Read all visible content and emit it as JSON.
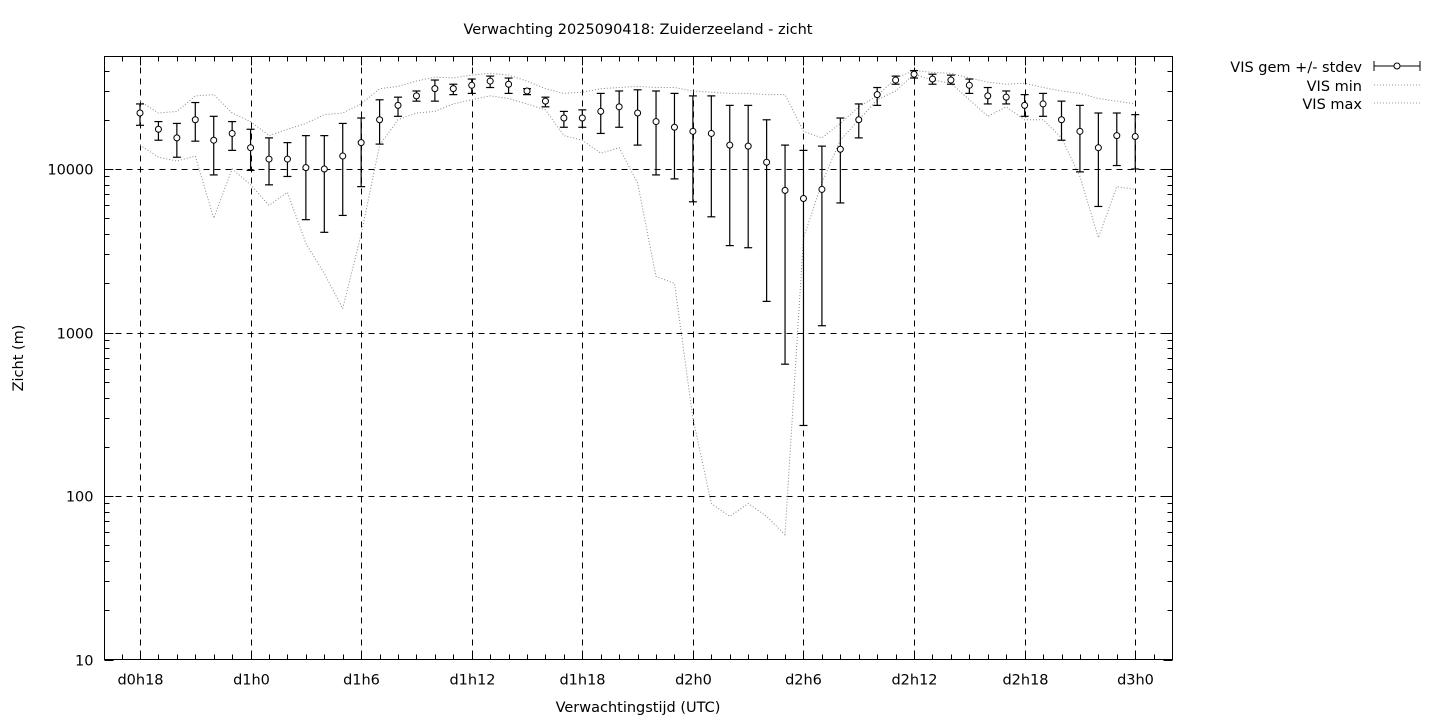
{
  "chart_data": {
    "type": "scatter",
    "title": "Verwachting 2025090418: Zuiderzeeland - zicht",
    "xlabel": "Verwachtingstijd (UTC)",
    "ylabel": "Zicht (m)",
    "y_scale": "log",
    "ylim": [
      10,
      50000
    ],
    "yticks": [
      10,
      100,
      1000,
      10000
    ],
    "ytick_labels": [
      "10",
      "100",
      "1000",
      "10000"
    ],
    "x_units": "hours since d0h0",
    "xlim": [
      16,
      74
    ],
    "xticks": [
      18,
      24,
      30,
      36,
      42,
      48,
      54,
      60,
      66,
      72
    ],
    "xtick_labels": [
      "d0h18",
      "d1h0",
      "d1h6",
      "d1h12",
      "d1h18",
      "d2h0",
      "d2h6",
      "d2h12",
      "d2h18",
      "d3h0"
    ],
    "grid": true,
    "legend_position": "outside-top-right",
    "legend": [
      "VIS gem +/- stdev",
      "VIS min",
      "VIS max"
    ],
    "x": [
      18,
      19,
      20,
      21,
      22,
      23,
      24,
      25,
      26,
      27,
      28,
      29,
      30,
      31,
      32,
      33,
      34,
      35,
      36,
      37,
      38,
      39,
      40,
      41,
      42,
      43,
      44,
      45,
      46,
      47,
      48,
      49,
      50,
      51,
      52,
      53,
      54,
      55,
      56,
      57,
      58,
      59,
      60,
      61,
      62,
      63,
      64,
      65,
      66,
      67,
      68,
      69,
      70,
      71,
      72
    ],
    "series": [
      {
        "name": "VIS gem +/- stdev",
        "style": "points-errorbars",
        "mean": [
          22000,
          17500,
          15500,
          20000,
          15000,
          16500,
          13500,
          11500,
          11500,
          10200,
          10000,
          12000,
          14500,
          20000,
          24500,
          28000,
          31000,
          31000,
          32500,
          34500,
          33000,
          30000,
          26000,
          20500,
          20500,
          22500,
          24000,
          22000,
          19500,
          18000,
          17000,
          16500,
          14000,
          13800,
          11000,
          7400,
          6600,
          7500,
          13200,
          20000,
          28500,
          35000,
          38000,
          35500,
          35000,
          32500,
          28000,
          27500,
          24500,
          25000,
          20000,
          17000,
          13500,
          16000,
          15800
        ],
        "low": [
          18500,
          15000,
          11800,
          14800,
          9200,
          13000,
          9800,
          8000,
          9000,
          4900,
          4100,
          5200,
          7800,
          14200,
          21000,
          26000,
          26000,
          28500,
          29000,
          31500,
          29000,
          28500,
          24000,
          18000,
          18000,
          16500,
          18000,
          14000,
          9200,
          8700,
          6300,
          5100,
          3400,
          3300,
          1550,
          640,
          270,
          1100,
          6200,
          15500,
          24500,
          33000,
          36000,
          33000,
          33000,
          29000,
          25000,
          25000,
          21000,
          21000,
          15000,
          9600,
          5900,
          10500,
          10000
        ],
        "high": [
          25000,
          19500,
          19000,
          25500,
          21000,
          19500,
          17500,
          15500,
          14500,
          16000,
          16000,
          19000,
          20500,
          26500,
          27500,
          30000,
          35000,
          33000,
          35500,
          37000,
          36000,
          31000,
          27500,
          22500,
          23000,
          29000,
          30000,
          30500,
          30000,
          29000,
          28000,
          28000,
          24500,
          24500,
          20000,
          14000,
          13000,
          13800,
          20500,
          25000,
          31500,
          37000,
          40000,
          38000,
          37500,
          35500,
          31500,
          30000,
          28500,
          29000,
          26000,
          24500,
          22000,
          22000,
          21500
        ]
      },
      {
        "name": "VIS min",
        "style": "dotted-line",
        "values": [
          14000,
          11800,
          11200,
          12000,
          5000,
          10000,
          8000,
          6000,
          7200,
          3500,
          2300,
          1400,
          4000,
          14000,
          20000,
          22000,
          22500,
          25000,
          26500,
          28000,
          27000,
          25000,
          23000,
          16000,
          15000,
          12500,
          13500,
          8200,
          2200,
          2000,
          300,
          90,
          75,
          90,
          75,
          58,
          3800,
          8200,
          15000,
          20000,
          26500,
          30000,
          38000,
          35000,
          33500,
          26500,
          21000,
          24000,
          20000,
          20000,
          15500,
          9000,
          3800,
          7800,
          7500
        ]
      },
      {
        "name": "VIS max",
        "style": "dotted-line",
        "values": [
          26000,
          22000,
          22500,
          28000,
          28500,
          22000,
          19500,
          16000,
          17500,
          19000,
          21500,
          22000,
          25000,
          31000,
          32000,
          34500,
          36500,
          36000,
          37500,
          38500,
          37500,
          34500,
          31000,
          29000,
          29500,
          31000,
          31500,
          32000,
          31500,
          31500,
          30000,
          29500,
          29000,
          29000,
          28500,
          28500,
          17000,
          15500,
          19000,
          24000,
          28000,
          36000,
          40000,
          39000,
          38500,
          36000,
          34000,
          33000,
          33500,
          31500,
          30000,
          29000,
          27000,
          26000,
          25000
        ]
      }
    ]
  }
}
